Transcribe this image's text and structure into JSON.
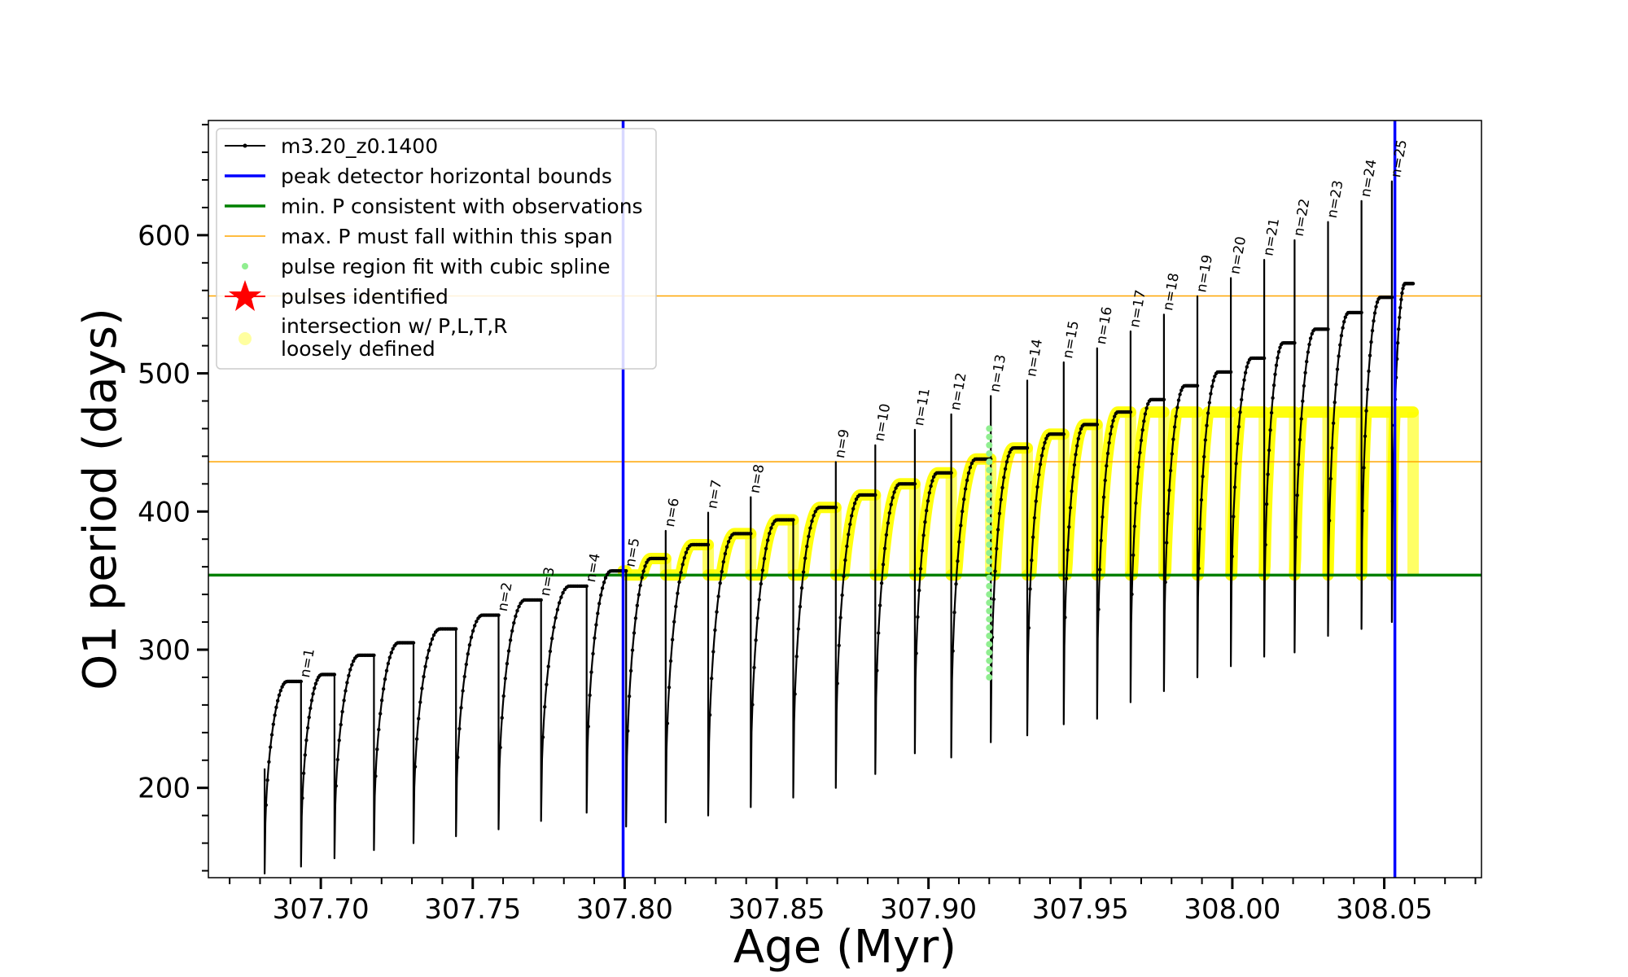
{
  "chart_data": {
    "type": "line",
    "xlabel": "Age (Myr)",
    "ylabel": "O1 period (days)",
    "xlim": [
      307.663,
      308.082
    ],
    "ylim": [
      135,
      683
    ],
    "x_ticks": [
      307.7,
      307.75,
      307.8,
      307.85,
      307.9,
      307.95,
      308.0,
      308.05
    ],
    "x_tick_labels": [
      "307.70",
      "307.75",
      "307.80",
      "307.85",
      "307.90",
      "307.95",
      "308.00",
      "308.05"
    ],
    "y_ticks": [
      200,
      300,
      400,
      500,
      600
    ],
    "y_tick_labels": [
      "200",
      "300",
      "400",
      "500",
      "600"
    ],
    "grid": false,
    "legend_position": "top-left",
    "legend": [
      {
        "label": "m3.20_z0.1400",
        "style": "line-dots",
        "color": "#000000"
      },
      {
        "label": "peak detector horizontal bounds",
        "style": "line",
        "color": "#0000ff"
      },
      {
        "label": "min. P consistent with observations",
        "style": "line",
        "color": "#008000"
      },
      {
        "label": "max. P must fall within this span",
        "style": "thin-line",
        "color": "#ffa500"
      },
      {
        "label": "pulse region fit with cubic spline",
        "style": "dot",
        "color": "#90ee90"
      },
      {
        "label": "pulses identified",
        "style": "star",
        "color": "#ff0000"
      },
      {
        "label": "intersection w/ P,L,T,R",
        "label2": "loosely defined",
        "style": "dot",
        "color": "#ffffa0"
      }
    ],
    "peak_detector_bounds_x": [
      307.7995,
      308.0535
    ],
    "min_period_y": 354,
    "max_period_span_y": [
      436,
      556
    ],
    "series_name": "m3.20_z0.1400",
    "series_color": "#000000",
    "yellow_color": "#ffff00",
    "spline_color": "#90ee90",
    "cycles": [
      {
        "start": 307.6815,
        "end": 307.6935,
        "min": 138,
        "max": 277,
        "spike": 214,
        "label": "n=1"
      },
      {
        "start": 307.6935,
        "end": 307.7045,
        "min": 143,
        "max": 282,
        "spike": 0,
        "label": ""
      },
      {
        "start": 307.7045,
        "end": 307.7175,
        "min": 149,
        "max": 296,
        "spike": 0,
        "label": ""
      },
      {
        "start": 307.7175,
        "end": 307.7305,
        "min": 155,
        "max": 305,
        "spike": 0,
        "label": ""
      },
      {
        "start": 307.7305,
        "end": 307.7445,
        "min": 160,
        "max": 315,
        "spike": 0,
        "label": ""
      },
      {
        "start": 307.7445,
        "end": 307.7585,
        "min": 165,
        "max": 325,
        "spike": 0,
        "label": "n=2"
      },
      {
        "start": 307.7585,
        "end": 307.7725,
        "min": 170,
        "max": 336,
        "spike": 0,
        "label": "n=3"
      },
      {
        "start": 307.7725,
        "end": 307.7875,
        "min": 176,
        "max": 346,
        "spike": 0,
        "label": "n=4"
      },
      {
        "start": 307.7875,
        "end": 307.8005,
        "min": 182,
        "max": 357,
        "spike": 0,
        "label": "n=5"
      },
      {
        "start": 307.8005,
        "end": 307.8135,
        "min": 172,
        "max": 366,
        "spike": 0,
        "label": "n=6"
      },
      {
        "start": 307.8135,
        "end": 307.8275,
        "min": 175,
        "max": 376,
        "spike": 0,
        "label": "n=7"
      },
      {
        "start": 307.8275,
        "end": 307.8415,
        "min": 180,
        "max": 384,
        "spike": 0,
        "label": "n=8"
      },
      {
        "start": 307.8415,
        "end": 307.8555,
        "min": 186,
        "max": 394,
        "spike": 0,
        "label": ""
      },
      {
        "start": 307.8555,
        "end": 307.8695,
        "min": 193,
        "max": 403,
        "spike": 0,
        "label": "n=9"
      },
      {
        "start": 307.8695,
        "end": 307.8825,
        "min": 200,
        "max": 412,
        "spike": 0,
        "label": "n=10"
      },
      {
        "start": 307.8825,
        "end": 307.8955,
        "min": 210,
        "max": 420,
        "spike": 0,
        "label": "n=11"
      },
      {
        "start": 307.8955,
        "end": 307.9075,
        "min": 225,
        "max": 428,
        "spike": 0,
        "label": "n=12"
      },
      {
        "start": 307.9075,
        "end": 307.9205,
        "min": 222,
        "max": 438,
        "spike": 0,
        "label": "n=13"
      },
      {
        "start": 307.9205,
        "end": 307.9325,
        "min": 233,
        "max": 446,
        "spike": 0,
        "label": "n=14"
      },
      {
        "start": 307.9325,
        "end": 307.9445,
        "min": 238,
        "max": 456,
        "spike": 0,
        "label": "n=15"
      },
      {
        "start": 307.9445,
        "end": 307.9555,
        "min": 246,
        "max": 463,
        "spike": 0,
        "label": "n=16"
      },
      {
        "start": 307.9555,
        "end": 307.9665,
        "min": 250,
        "max": 472,
        "spike": 0,
        "label": "n=17"
      },
      {
        "start": 307.9665,
        "end": 307.9775,
        "min": 262,
        "max": 481,
        "spike": 0,
        "label": "n=18"
      },
      {
        "start": 307.9775,
        "end": 307.9885,
        "min": 270,
        "max": 491,
        "spike": 0,
        "label": "n=19"
      },
      {
        "start": 307.9885,
        "end": 307.9995,
        "min": 280,
        "max": 501,
        "spike": 0,
        "label": "n=20"
      },
      {
        "start": 307.9995,
        "end": 308.0105,
        "min": 288,
        "max": 511,
        "spike": 0,
        "label": "n=21"
      },
      {
        "start": 308.0105,
        "end": 308.0205,
        "min": 295,
        "max": 522,
        "spike": 0,
        "label": "n=22"
      },
      {
        "start": 308.0205,
        "end": 308.0315,
        "min": 298,
        "max": 532,
        "spike": 0,
        "label": "n=23"
      },
      {
        "start": 308.0315,
        "end": 308.0425,
        "min": 310,
        "max": 544,
        "spike": 0,
        "label": "n=24"
      },
      {
        "start": 308.0425,
        "end": 308.0525,
        "min": 315,
        "max": 555,
        "spike": 0,
        "label": "n=25"
      },
      {
        "start": 308.0525,
        "end": 308.0595,
        "min": 320,
        "max": 565,
        "spike": 0,
        "label": ""
      }
    ],
    "yellow_from_x": 307.7995,
    "yellow_cap": 472,
    "spline_x": 307.92,
    "spline_y_range": [
      280,
      463
    ]
  }
}
